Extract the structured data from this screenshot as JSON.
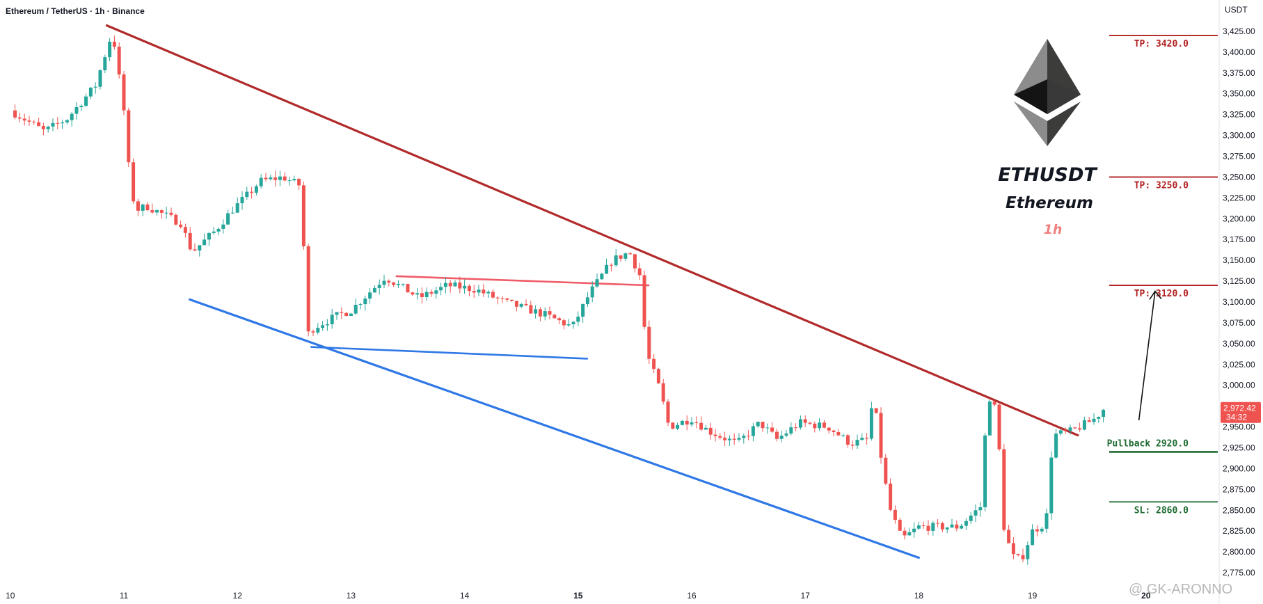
{
  "header": {
    "symbol_line": "Ethereum / TetherUS · 1h · Binance"
  },
  "branding": {
    "ticker": "ETHUSDT",
    "name": "Ethereum",
    "timeframe": "1h",
    "logo_icon": "ethereum-logo-icon",
    "watermark": "@ GK-ARONNO"
  },
  "chart_data": {
    "type": "candlestick",
    "title": "Ethereum / TetherUS · 1h · Binance",
    "currency": "USDT",
    "y_axis": {
      "label": "USDT",
      "min": 2765,
      "max": 3435,
      "ticks": [
        2775,
        2800,
        2825,
        2850,
        2875,
        2900,
        2925,
        2950,
        2975,
        3000,
        3025,
        3050,
        3075,
        3100,
        3125,
        3150,
        3175,
        3200,
        3225,
        3250,
        3275,
        3300,
        3325,
        3350,
        3375,
        3400,
        3425
      ],
      "tick_labels": [
        "2,775.00",
        "2,800.00",
        "2,825.00",
        "2,850.00",
        "2,875.00",
        "2,900.00",
        "2,925.00",
        "2,950.00",
        "2,975.00",
        "3,000.00",
        "3,025.00",
        "3,050.00",
        "3,075.00",
        "3,100.00",
        "3,125.00",
        "3,150.00",
        "3,175.00",
        "3,200.00",
        "3,225.00",
        "3,250.00",
        "3,275.00",
        "3,300.00",
        "3,325.00",
        "3,350.00",
        "3,375.00",
        "3,400.00",
        "3,425.00"
      ]
    },
    "x_axis": {
      "day_labels": [
        "10",
        "11",
        "12",
        "13",
        "14",
        "15",
        "16",
        "17",
        "18",
        "19",
        "20"
      ],
      "bold_labels": [
        "15",
        "20"
      ]
    },
    "current_price": {
      "value": 2972.42,
      "label": "2,972.42",
      "countdown": "34:32"
    },
    "price_path": [
      [
        10.0,
        3330
      ],
      [
        10.3,
        3305
      ],
      [
        10.5,
        3320
      ],
      [
        10.75,
        3360
      ],
      [
        10.9,
        3425
      ],
      [
        11.0,
        3330
      ],
      [
        11.05,
        3250
      ],
      [
        11.1,
        3210
      ],
      [
        11.2,
        3215
      ],
      [
        11.5,
        3195
      ],
      [
        11.6,
        3160
      ],
      [
        11.8,
        3185
      ],
      [
        11.95,
        3210
      ],
      [
        12.1,
        3230
      ],
      [
        12.2,
        3245
      ],
      [
        12.4,
        3250
      ],
      [
        12.55,
        3240
      ],
      [
        12.58,
        3180
      ],
      [
        12.61,
        3060
      ],
      [
        12.68,
        3070
      ],
      [
        12.9,
        3085
      ],
      [
        13.0,
        3090
      ],
      [
        13.3,
        3130
      ],
      [
        13.6,
        3105
      ],
      [
        13.85,
        3120
      ],
      [
        14.1,
        3115
      ],
      [
        14.35,
        3100
      ],
      [
        14.7,
        3085
      ],
      [
        14.95,
        3070
      ],
      [
        15.1,
        3110
      ],
      [
        15.3,
        3150
      ],
      [
        15.45,
        3160
      ],
      [
        15.55,
        3130
      ],
      [
        15.6,
        3040
      ],
      [
        15.72,
        2995
      ],
      [
        15.8,
        2950
      ],
      [
        16.0,
        2960
      ],
      [
        16.15,
        2945
      ],
      [
        16.4,
        2930
      ],
      [
        16.6,
        2955
      ],
      [
        16.75,
        2935
      ],
      [
        16.95,
        2955
      ],
      [
        17.2,
        2950
      ],
      [
        17.4,
        2930
      ],
      [
        17.55,
        2935
      ],
      [
        17.6,
        2990
      ],
      [
        17.68,
        2900
      ],
      [
        17.75,
        2850
      ],
      [
        17.85,
        2815
      ],
      [
        18.0,
        2830
      ],
      [
        18.35,
        2830
      ],
      [
        18.55,
        2855
      ],
      [
        18.6,
        2980
      ],
      [
        18.65,
        2990
      ],
      [
        18.7,
        2940
      ],
      [
        18.75,
        2830
      ],
      [
        18.82,
        2795
      ],
      [
        18.9,
        2790
      ],
      [
        19.0,
        2825
      ],
      [
        19.12,
        2835
      ],
      [
        19.18,
        2940
      ],
      [
        19.35,
        2945
      ],
      [
        19.55,
        2960
      ],
      [
        19.63,
        2972
      ]
    ],
    "trendlines": [
      {
        "name": "descending-resistance",
        "color": "#b22a2a",
        "points": [
          [
            10.85,
            3432
          ],
          [
            19.4,
            2940
          ]
        ]
      },
      {
        "name": "channel-support",
        "color": "#2f78e6",
        "points": [
          [
            11.58,
            3103
          ],
          [
            18.0,
            2793
          ]
        ]
      },
      {
        "name": "inner-support",
        "color": "#2f78e6",
        "points": [
          [
            12.65,
            3046
          ],
          [
            15.08,
            3032
          ]
        ]
      },
      {
        "name": "inner-resistance",
        "color": "#f05b68",
        "points": [
          [
            13.4,
            3131
          ],
          [
            15.62,
            3120
          ]
        ]
      }
    ],
    "levels": [
      {
        "label": "TP: 3420.0",
        "value": 3420.0,
        "color": "#b22222"
      },
      {
        "label": "TP: 3250.0",
        "value": 3250.0,
        "color": "#b22222"
      },
      {
        "label": "TP: 3120.0",
        "value": 3120.0,
        "color": "#b22222"
      },
      {
        "label": "Pullback 2920.0",
        "value": 2920.0,
        "color": "#1e6b30"
      },
      {
        "label": "SL: 2860.0",
        "value": 2860.0,
        "color": "#1e6b30"
      }
    ],
    "projection_arrow": {
      "from": [
        19.95,
        2958
      ],
      "to": [
        20.05,
        3113
      ]
    },
    "colors": {
      "up": "#26a69a",
      "down": "#ef5350"
    }
  }
}
